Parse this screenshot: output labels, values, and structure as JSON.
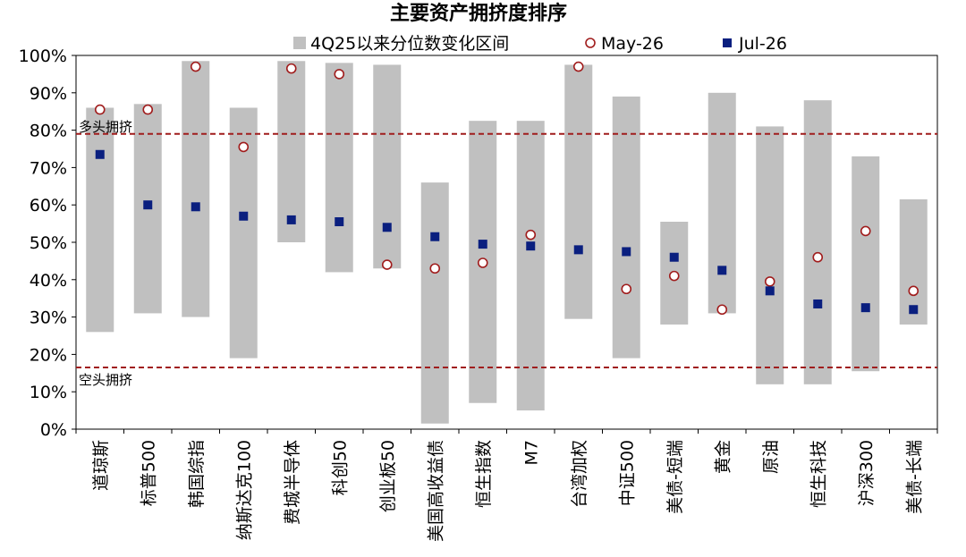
{
  "chart_data": {
    "type": "range-dot",
    "title": "主要资产拥挤度排序",
    "legend": {
      "range_label": "4Q25以来分位数变化区间",
      "may_label": "May-26",
      "jul_label": "Jul-26"
    },
    "categories": [
      "道琼斯",
      "标普500",
      "韩国综指",
      "纳斯达克100",
      "费城半导体",
      "科创50",
      "创业板50",
      "美国高收益债",
      "恒生指数",
      "M7",
      "台湾加权",
      "中证500",
      "美债-短端",
      "黄金",
      "原油",
      "恒生科技",
      "沪深300",
      "美债-长端"
    ],
    "range_low": [
      26,
      31,
      30,
      19,
      50,
      42,
      43,
      1.5,
      7,
      5,
      29.5,
      19,
      28,
      31,
      12,
      12,
      15.5,
      28
    ],
    "range_high": [
      86,
      87,
      98.5,
      86,
      98.5,
      98,
      97.5,
      66,
      82.5,
      82.5,
      97.5,
      89,
      55.5,
      90,
      81,
      88,
      73,
      61.5
    ],
    "may_values": [
      85.5,
      85.5,
      97,
      75.5,
      96.5,
      95,
      44,
      43,
      44.5,
      52,
      97,
      37.5,
      41,
      32,
      39.5,
      46,
      53,
      37
    ],
    "jul_values": [
      73.5,
      60,
      59.5,
      57,
      56,
      55.5,
      54,
      51.5,
      49.5,
      49,
      48,
      47.5,
      46,
      42.5,
      37,
      33.5,
      32.5,
      32
    ],
    "reference_lines": [
      {
        "value": 79,
        "label": "多头拥挤"
      },
      {
        "value": 16.5,
        "label": "空头拥挤"
      }
    ],
    "y_ticks": [
      "0%",
      "10%",
      "20%",
      "30%",
      "40%",
      "50%",
      "60%",
      "70%",
      "80%",
      "90%",
      "100%"
    ],
    "ylim": [
      0,
      100
    ],
    "colors": {
      "range": "#c0c0c0",
      "may_fill": "#ffffff",
      "may_stroke": "#a01c1c",
      "jul": "#0a1f7f",
      "ref_line": "#a01c1c",
      "axis": "#000000"
    }
  }
}
